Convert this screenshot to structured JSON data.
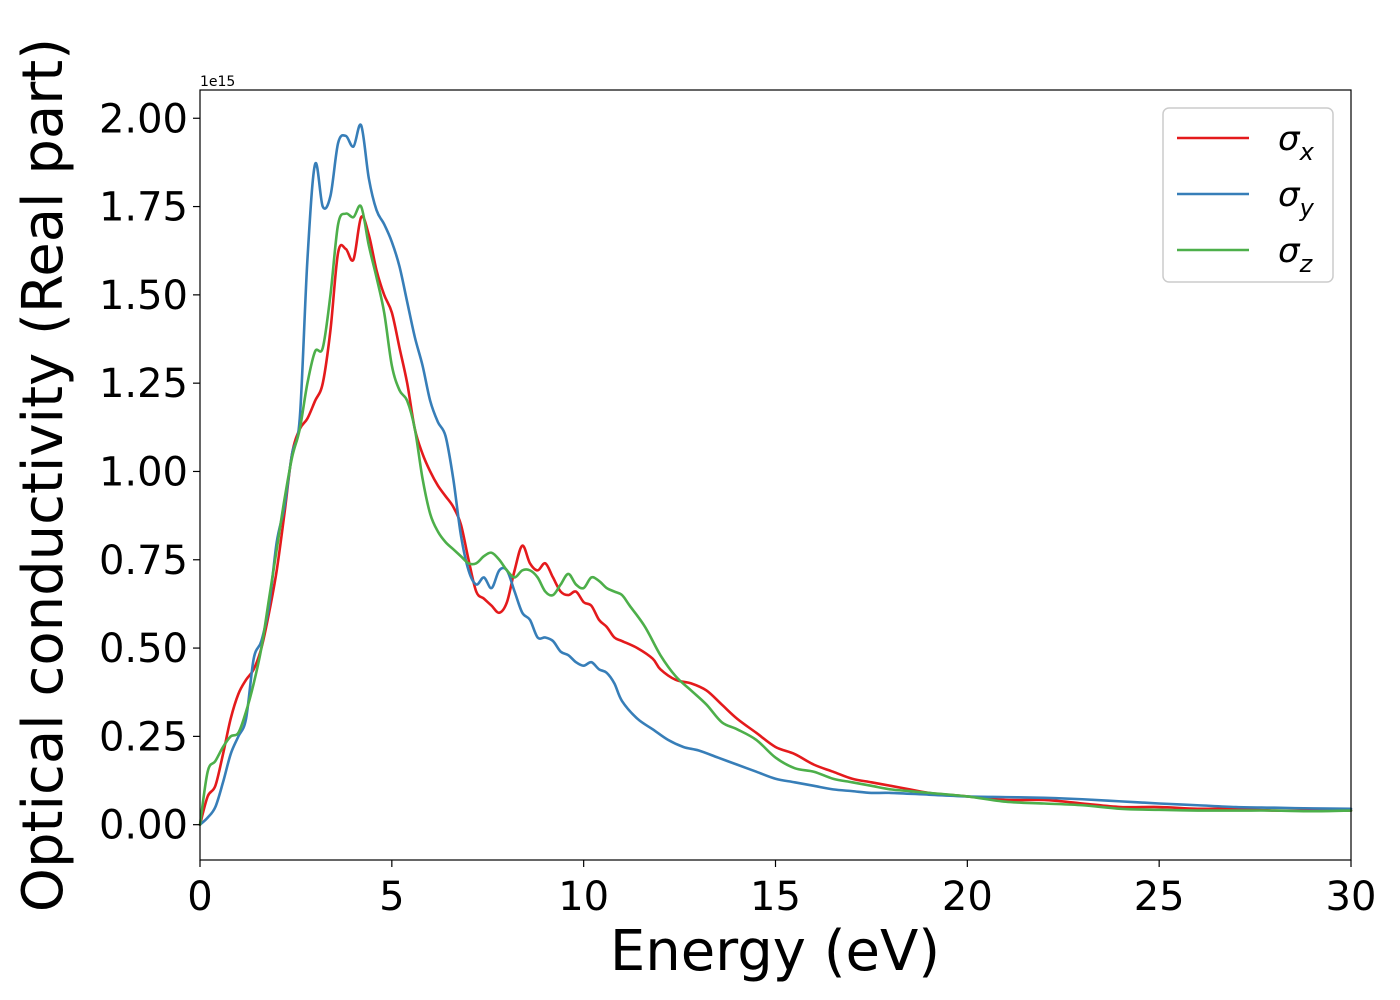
{
  "chart_data": {
    "type": "line",
    "title": "",
    "xlabel": "Energy (eV)",
    "ylabel": "Optical conductivity (Real part)",
    "y_offset_label": "1e15",
    "xlim": [
      0,
      30
    ],
    "ylim": [
      -0.1,
      2.08
    ],
    "xticks": [
      0,
      5,
      10,
      15,
      20,
      25,
      30
    ],
    "xtick_labels": [
      "0",
      "5",
      "10",
      "15",
      "20",
      "25",
      "30"
    ],
    "yticks": [
      0,
      0.25,
      0.5,
      0.75,
      1.0,
      1.25,
      1.5,
      1.75,
      2.0
    ],
    "ytick_labels": [
      "0.00",
      "0.25",
      "0.50",
      "0.75",
      "1.00",
      "1.25",
      "1.50",
      "1.75",
      "2.00"
    ],
    "grid": false,
    "legend_position": "top-right",
    "series": [
      {
        "name": "σx",
        "symbol": "σ",
        "subscript": "x",
        "color": "#e41a1c",
        "points": [
          [
            0,
            0
          ],
          [
            0.2,
            0.08
          ],
          [
            0.4,
            0.11
          ],
          [
            0.6,
            0.2
          ],
          [
            0.8,
            0.3
          ],
          [
            1.0,
            0.37
          ],
          [
            1.2,
            0.41
          ],
          [
            1.4,
            0.44
          ],
          [
            1.6,
            0.5
          ],
          [
            1.8,
            0.6
          ],
          [
            2.0,
            0.72
          ],
          [
            2.2,
            0.88
          ],
          [
            2.4,
            1.05
          ],
          [
            2.6,
            1.12
          ],
          [
            2.8,
            1.15
          ],
          [
            3.0,
            1.2
          ],
          [
            3.2,
            1.25
          ],
          [
            3.4,
            1.4
          ],
          [
            3.6,
            1.62
          ],
          [
            3.8,
            1.63
          ],
          [
            4.0,
            1.6
          ],
          [
            4.2,
            1.72
          ],
          [
            4.4,
            1.67
          ],
          [
            4.6,
            1.57
          ],
          [
            4.8,
            1.5
          ],
          [
            5.0,
            1.45
          ],
          [
            5.2,
            1.35
          ],
          [
            5.4,
            1.25
          ],
          [
            5.6,
            1.12
          ],
          [
            5.8,
            1.05
          ],
          [
            6.0,
            1.0
          ],
          [
            6.2,
            0.96
          ],
          [
            6.4,
            0.93
          ],
          [
            6.6,
            0.9
          ],
          [
            6.8,
            0.85
          ],
          [
            7.0,
            0.75
          ],
          [
            7.2,
            0.66
          ],
          [
            7.4,
            0.64
          ],
          [
            7.6,
            0.62
          ],
          [
            7.8,
            0.6
          ],
          [
            8.0,
            0.63
          ],
          [
            8.2,
            0.72
          ],
          [
            8.4,
            0.79
          ],
          [
            8.6,
            0.74
          ],
          [
            8.8,
            0.72
          ],
          [
            9.0,
            0.74
          ],
          [
            9.2,
            0.7
          ],
          [
            9.4,
            0.66
          ],
          [
            9.6,
            0.65
          ],
          [
            9.8,
            0.66
          ],
          [
            10.0,
            0.63
          ],
          [
            10.2,
            0.62
          ],
          [
            10.4,
            0.58
          ],
          [
            10.6,
            0.56
          ],
          [
            10.8,
            0.53
          ],
          [
            11.0,
            0.52
          ],
          [
            11.4,
            0.5
          ],
          [
            11.8,
            0.47
          ],
          [
            12.0,
            0.44
          ],
          [
            12.4,
            0.41
          ],
          [
            12.8,
            0.4
          ],
          [
            13.2,
            0.38
          ],
          [
            13.6,
            0.34
          ],
          [
            14.0,
            0.3
          ],
          [
            14.5,
            0.26
          ],
          [
            15.0,
            0.22
          ],
          [
            15.5,
            0.2
          ],
          [
            16.0,
            0.17
          ],
          [
            16.5,
            0.15
          ],
          [
            17.0,
            0.13
          ],
          [
            17.5,
            0.12
          ],
          [
            18.0,
            0.11
          ],
          [
            18.5,
            0.1
          ],
          [
            19.0,
            0.09
          ],
          [
            20.0,
            0.08
          ],
          [
            21.0,
            0.07
          ],
          [
            22.0,
            0.07
          ],
          [
            23.0,
            0.06
          ],
          [
            24.0,
            0.05
          ],
          [
            25.0,
            0.05
          ],
          [
            26.0,
            0.045
          ],
          [
            27.0,
            0.045
          ],
          [
            28.0,
            0.04
          ],
          [
            29.0,
            0.04
          ],
          [
            30.0,
            0.04
          ]
        ]
      },
      {
        "name": "σy",
        "symbol": "σ",
        "subscript": "y",
        "color": "#377eb8",
        "points": [
          [
            0,
            0
          ],
          [
            0.2,
            0.02
          ],
          [
            0.4,
            0.05
          ],
          [
            0.6,
            0.12
          ],
          [
            0.8,
            0.2
          ],
          [
            1.0,
            0.25
          ],
          [
            1.2,
            0.3
          ],
          [
            1.4,
            0.47
          ],
          [
            1.6,
            0.52
          ],
          [
            1.8,
            0.62
          ],
          [
            2.0,
            0.8
          ],
          [
            2.2,
            0.9
          ],
          [
            2.4,
            1.05
          ],
          [
            2.6,
            1.15
          ],
          [
            2.8,
            1.6
          ],
          [
            3.0,
            1.87
          ],
          [
            3.2,
            1.75
          ],
          [
            3.4,
            1.78
          ],
          [
            3.6,
            1.93
          ],
          [
            3.8,
            1.95
          ],
          [
            4.0,
            1.92
          ],
          [
            4.2,
            1.98
          ],
          [
            4.4,
            1.83
          ],
          [
            4.6,
            1.74
          ],
          [
            4.8,
            1.7
          ],
          [
            5.0,
            1.65
          ],
          [
            5.2,
            1.58
          ],
          [
            5.4,
            1.48
          ],
          [
            5.6,
            1.38
          ],
          [
            5.8,
            1.3
          ],
          [
            6.0,
            1.2
          ],
          [
            6.2,
            1.14
          ],
          [
            6.4,
            1.1
          ],
          [
            6.6,
            0.98
          ],
          [
            6.8,
            0.82
          ],
          [
            7.0,
            0.72
          ],
          [
            7.2,
            0.68
          ],
          [
            7.4,
            0.7
          ],
          [
            7.6,
            0.67
          ],
          [
            7.8,
            0.72
          ],
          [
            8.0,
            0.72
          ],
          [
            8.2,
            0.66
          ],
          [
            8.4,
            0.6
          ],
          [
            8.6,
            0.58
          ],
          [
            8.8,
            0.53
          ],
          [
            9.0,
            0.53
          ],
          [
            9.2,
            0.52
          ],
          [
            9.4,
            0.49
          ],
          [
            9.6,
            0.48
          ],
          [
            9.8,
            0.46
          ],
          [
            10.0,
            0.45
          ],
          [
            10.2,
            0.46
          ],
          [
            10.4,
            0.44
          ],
          [
            10.6,
            0.43
          ],
          [
            10.8,
            0.4
          ],
          [
            11.0,
            0.35
          ],
          [
            11.4,
            0.3
          ],
          [
            11.8,
            0.27
          ],
          [
            12.2,
            0.24
          ],
          [
            12.6,
            0.22
          ],
          [
            13.0,
            0.21
          ],
          [
            13.5,
            0.19
          ],
          [
            14.0,
            0.17
          ],
          [
            14.5,
            0.15
          ],
          [
            15.0,
            0.13
          ],
          [
            15.5,
            0.12
          ],
          [
            16.0,
            0.11
          ],
          [
            16.5,
            0.1
          ],
          [
            17.0,
            0.095
          ],
          [
            17.5,
            0.09
          ],
          [
            18.0,
            0.09
          ],
          [
            19.0,
            0.085
          ],
          [
            20.0,
            0.08
          ],
          [
            21.0,
            0.078
          ],
          [
            22.0,
            0.076
          ],
          [
            23.0,
            0.072
          ],
          [
            24.0,
            0.066
          ],
          [
            25.0,
            0.06
          ],
          [
            26.0,
            0.055
          ],
          [
            27.0,
            0.05
          ],
          [
            28.0,
            0.048
          ],
          [
            29.0,
            0.046
          ],
          [
            30.0,
            0.045
          ]
        ]
      },
      {
        "name": "σz",
        "symbol": "σ",
        "subscript": "z",
        "color": "#4daf4a",
        "points": [
          [
            0,
            0
          ],
          [
            0.2,
            0.15
          ],
          [
            0.4,
            0.18
          ],
          [
            0.6,
            0.22
          ],
          [
            0.8,
            0.25
          ],
          [
            1.0,
            0.26
          ],
          [
            1.2,
            0.32
          ],
          [
            1.4,
            0.4
          ],
          [
            1.6,
            0.5
          ],
          [
            1.8,
            0.64
          ],
          [
            2.0,
            0.78
          ],
          [
            2.2,
            0.92
          ],
          [
            2.4,
            1.04
          ],
          [
            2.6,
            1.12
          ],
          [
            2.8,
            1.25
          ],
          [
            3.0,
            1.34
          ],
          [
            3.2,
            1.35
          ],
          [
            3.4,
            1.5
          ],
          [
            3.6,
            1.7
          ],
          [
            3.8,
            1.73
          ],
          [
            4.0,
            1.72
          ],
          [
            4.2,
            1.75
          ],
          [
            4.4,
            1.64
          ],
          [
            4.6,
            1.55
          ],
          [
            4.8,
            1.45
          ],
          [
            5.0,
            1.3
          ],
          [
            5.2,
            1.23
          ],
          [
            5.4,
            1.2
          ],
          [
            5.6,
            1.12
          ],
          [
            5.8,
            0.98
          ],
          [
            6.0,
            0.88
          ],
          [
            6.2,
            0.83
          ],
          [
            6.4,
            0.8
          ],
          [
            6.6,
            0.78
          ],
          [
            6.8,
            0.76
          ],
          [
            7.0,
            0.74
          ],
          [
            7.2,
            0.74
          ],
          [
            7.4,
            0.76
          ],
          [
            7.6,
            0.77
          ],
          [
            7.8,
            0.75
          ],
          [
            8.0,
            0.72
          ],
          [
            8.2,
            0.7
          ],
          [
            8.4,
            0.72
          ],
          [
            8.6,
            0.72
          ],
          [
            8.8,
            0.7
          ],
          [
            9.0,
            0.66
          ],
          [
            9.2,
            0.65
          ],
          [
            9.4,
            0.68
          ],
          [
            9.6,
            0.71
          ],
          [
            9.8,
            0.68
          ],
          [
            10.0,
            0.67
          ],
          [
            10.2,
            0.7
          ],
          [
            10.4,
            0.69
          ],
          [
            10.6,
            0.67
          ],
          [
            10.8,
            0.66
          ],
          [
            11.0,
            0.65
          ],
          [
            11.2,
            0.62
          ],
          [
            11.6,
            0.56
          ],
          [
            12.0,
            0.48
          ],
          [
            12.4,
            0.42
          ],
          [
            12.8,
            0.38
          ],
          [
            13.2,
            0.34
          ],
          [
            13.6,
            0.29
          ],
          [
            14.0,
            0.27
          ],
          [
            14.5,
            0.24
          ],
          [
            15.0,
            0.19
          ],
          [
            15.5,
            0.16
          ],
          [
            16.0,
            0.15
          ],
          [
            16.5,
            0.13
          ],
          [
            17.0,
            0.12
          ],
          [
            17.5,
            0.11
          ],
          [
            18.0,
            0.1
          ],
          [
            18.5,
            0.095
          ],
          [
            19.0,
            0.09
          ],
          [
            20.0,
            0.08
          ],
          [
            21.0,
            0.065
          ],
          [
            22.0,
            0.06
          ],
          [
            23.0,
            0.055
          ],
          [
            24.0,
            0.045
          ],
          [
            25.0,
            0.042
          ],
          [
            26.0,
            0.04
          ],
          [
            27.0,
            0.04
          ],
          [
            28.0,
            0.04
          ],
          [
            29.0,
            0.038
          ],
          [
            30.0,
            0.04
          ]
        ]
      }
    ]
  }
}
